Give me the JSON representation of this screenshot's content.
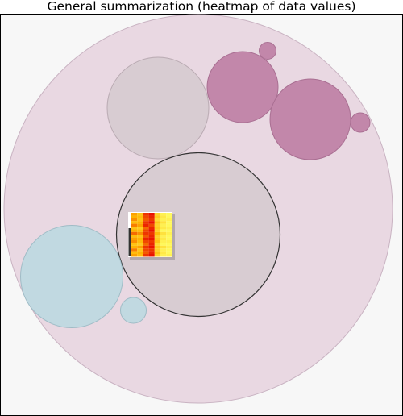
{
  "title": "General summarization (heatmap of data values)",
  "colors": {
    "outer_circle": "#e9d8e2",
    "grey_circle": "#d8ccd2",
    "magenta_circle": "#c287aa",
    "blue_circle": "#c1d9e1",
    "heatmap_low": "#ffff66",
    "heatmap_mid": "#ffb400",
    "heatmap_high": "#e60000"
  },
  "heatmap": {
    "columns": 7,
    "rows": 16,
    "values": [
      [
        0.55,
        0.4,
        0.85,
        0.95,
        0.3,
        0.1,
        0.05
      ],
      [
        0.5,
        0.45,
        0.8,
        0.9,
        0.35,
        0.15,
        0.05
      ],
      [
        0.6,
        0.4,
        0.75,
        0.85,
        0.25,
        0.1,
        0.1
      ],
      [
        0.45,
        0.5,
        0.85,
        0.95,
        0.4,
        0.2,
        0.05
      ],
      [
        0.65,
        0.55,
        0.9,
        0.8,
        0.3,
        0.1,
        0.05
      ],
      [
        0.4,
        0.35,
        0.7,
        0.9,
        0.35,
        0.15,
        0.1
      ],
      [
        0.5,
        0.45,
        0.8,
        0.95,
        0.3,
        0.05,
        0.05
      ],
      [
        0.7,
        0.6,
        0.85,
        0.85,
        0.45,
        0.2,
        0.1
      ],
      [
        0.45,
        0.4,
        0.75,
        0.9,
        0.3,
        0.1,
        0.05
      ],
      [
        0.55,
        0.5,
        0.9,
        0.95,
        0.35,
        0.15,
        0.05
      ],
      [
        0.6,
        0.45,
        0.8,
        0.85,
        0.4,
        0.1,
        0.1
      ],
      [
        0.4,
        0.35,
        0.7,
        0.9,
        0.25,
        0.05,
        0.05
      ],
      [
        0.5,
        0.55,
        0.85,
        0.95,
        0.35,
        0.2,
        0.1
      ],
      [
        0.65,
        0.4,
        0.8,
        0.85,
        0.3,
        0.1,
        0.05
      ],
      [
        0.45,
        0.5,
        0.75,
        0.9,
        0.4,
        0.15,
        0.05
      ],
      [
        0.55,
        0.45,
        0.85,
        0.95,
        0.3,
        0.1,
        0.1
      ]
    ]
  }
}
